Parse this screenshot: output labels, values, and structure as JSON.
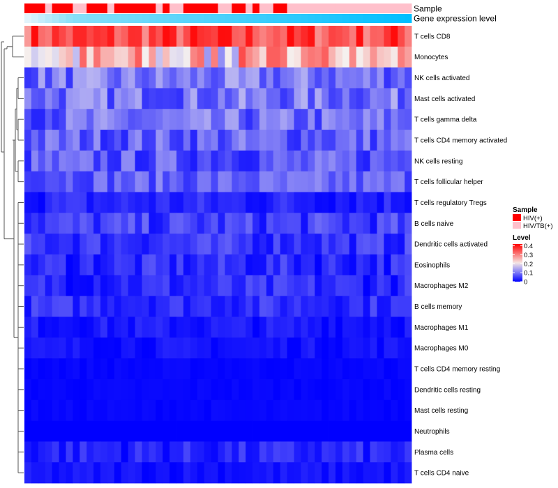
{
  "chart_data": {
    "type": "heatmap",
    "annotation_tracks": [
      "Sample",
      "Gene expression level"
    ],
    "rows": [
      "T cells CD8",
      "Monocytes",
      "NK cells activated",
      "Mast cells activated",
      "T cells gamma delta",
      "T cells CD4 memory activated",
      "NK cells resting",
      "T cells follicular helper",
      "T cells regulatory  Tregs",
      "B cells naive",
      "Dendritic cells activated",
      "Eosinophils",
      "Macrophages M2",
      "B cells memory",
      "Macrophages M1",
      "Macrophages M0",
      "T cells CD4 memory resting",
      "Dendritic cells resting",
      "Mast cells resting",
      "Neutrophils",
      "Plasma cells",
      "T cells CD4 naive"
    ],
    "sample_groups": [
      "HIV(+)",
      "HIV(+)",
      "HIV(+)",
      "HIV/TB(+)",
      "HIV(+)",
      "HIV(+)",
      "HIV(+)",
      "HIV/TB(+)",
      "HIV/TB(+)",
      "HIV(+)",
      "HIV(+)",
      "HIV(+)",
      "HIV/TB(+)",
      "HIV(+)",
      "HIV(+)",
      "HIV(+)",
      "HIV(+)",
      "HIV(+)",
      "HIV(+)",
      "HIV/TB(+)",
      "HIV(+)",
      "HIV/TB(+)",
      "HIV/TB(+)",
      "HIV(+)",
      "HIV(+)",
      "HIV(+)",
      "HIV(+)",
      "HIV(+)",
      "HIV/TB(+)",
      "HIV/TB(+)",
      "HIV(+)",
      "HIV(+)",
      "HIV/TB(+)",
      "HIV(+)",
      "HIV/TB(+)",
      "HIV/TB(+)",
      "HIV(+)",
      "HIV(+)",
      "HIV/TB(+)",
      "HIV/TB(+)",
      "HIV/TB(+)",
      "HIV/TB(+)",
      "HIV/TB(+)",
      "HIV/TB(+)",
      "HIV/TB(+)",
      "HIV/TB(+)",
      "HIV/TB(+)",
      "HIV/TB(+)",
      "HIV/TB(+)",
      "HIV/TB(+)",
      "HIV/TB(+)",
      "HIV/TB(+)",
      "HIV/TB(+)",
      "HIV/TB(+)",
      "HIV/TB(+)",
      "HIV/TB(+)"
    ],
    "row_ranges": [
      [
        0.28,
        0.42
      ],
      [
        0.1,
        0.35
      ],
      [
        0.04,
        0.15
      ],
      [
        0.04,
        0.15
      ],
      [
        0.03,
        0.14
      ],
      [
        0.03,
        0.13
      ],
      [
        0.02,
        0.12
      ],
      [
        0.04,
        0.12
      ],
      [
        0.0,
        0.06
      ],
      [
        0.01,
        0.09
      ],
      [
        0.01,
        0.08
      ],
      [
        0.0,
        0.07
      ],
      [
        0.0,
        0.07
      ],
      [
        0.01,
        0.07
      ],
      [
        0.0,
        0.04
      ],
      [
        0.0,
        0.03
      ],
      [
        0.0,
        0.01
      ],
      [
        0.0,
        0.01
      ],
      [
        0.0,
        0.01
      ],
      [
        0.0,
        0.0
      ],
      [
        0.0,
        0.06
      ],
      [
        0.0,
        0.03
      ]
    ],
    "legend": {
      "sample_title": "Sample",
      "sample_entries": [
        {
          "label": "HIV(+)",
          "color": "#ff0000"
        },
        {
          "label": "HIV/TB(+)",
          "color": "#ffc0cb"
        }
      ],
      "level_title": "Level",
      "level_ticks": [
        0,
        0.1,
        0.2,
        0.3,
        0.4
      ],
      "level_tick_labels": [
        "0",
        "0.1",
        "0.2",
        "0.3",
        "0.4"
      ]
    },
    "colors": {
      "low": "#0000ff",
      "mid": "#f5f0ee",
      "high": "#ff0000",
      "expression_track_start": "#00bfff",
      "expression_track_end": "#87dff8"
    },
    "value_range": [
      0,
      0.42
    ],
    "mid_value": 0.2
  }
}
